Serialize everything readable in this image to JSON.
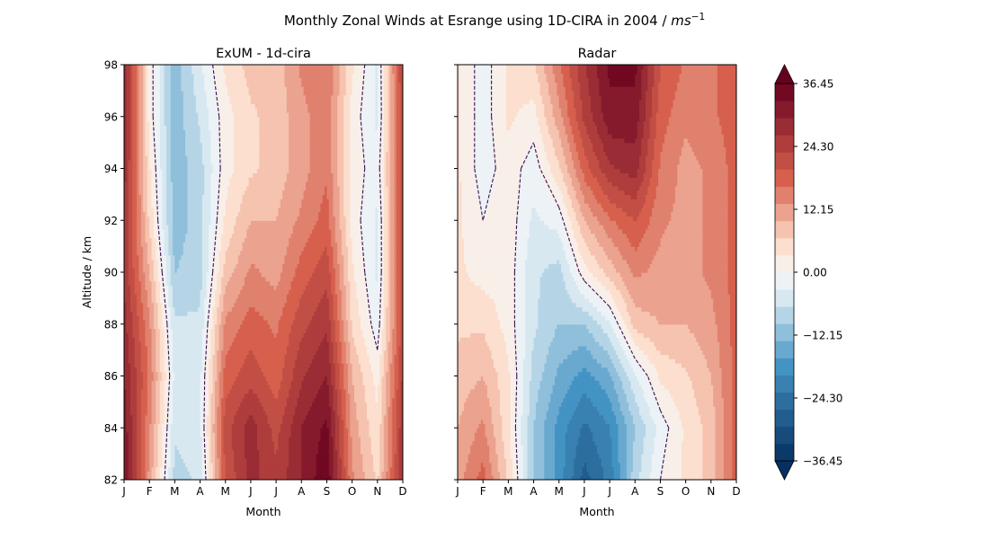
{
  "figure": {
    "suptitle_text": "Monthly Zonal Winds at Esrange using 1D-CIRA in 2004 / ",
    "suptitle_unit": "ms",
    "suptitle_exp": "−1"
  },
  "colors": {
    "neg_dark": "#053061",
    "neg_mid": "#4393c3",
    "neg_light": "#d1e5f0",
    "neutral": "#f7f7f7",
    "pos_light": "#fddbc7",
    "pos_mid": "#d6604d",
    "pos_dark": "#67001f",
    "contour": "#3b0f4f"
  },
  "chart_data": [
    {
      "type": "heatmap",
      "title": "ExUM - 1d-cira",
      "xlabel": "Month",
      "ylabel": "Altitude / km",
      "x_ticks": [
        "J",
        "F",
        "M",
        "A",
        "M",
        "J",
        "J",
        "A",
        "S",
        "O",
        "N",
        "D"
      ],
      "y_ticks": [
        "82",
        "84",
        "86",
        "88",
        "90",
        "92",
        "94",
        "96",
        "98"
      ],
      "ylim": [
        82,
        98
      ],
      "altitudes": [
        82,
        84,
        86,
        88,
        90,
        92,
        94,
        96,
        98
      ],
      "zonal_wind": [
        [
          34,
          12,
          -8,
          -6,
          20,
          28,
          24,
          30,
          36,
          14,
          6,
          26
        ],
        [
          32,
          14,
          -6,
          -4,
          22,
          28,
          22,
          30,
          34,
          12,
          4,
          26
        ],
        [
          30,
          16,
          -4,
          -4,
          18,
          22,
          18,
          26,
          30,
          10,
          2,
          24
        ],
        [
          28,
          14,
          -6,
          -6,
          14,
          18,
          16,
          22,
          26,
          6,
          -2,
          22
        ],
        [
          26,
          10,
          -10,
          -8,
          8,
          14,
          12,
          18,
          22,
          4,
          -4,
          22
        ],
        [
          26,
          6,
          -12,
          -8,
          4,
          10,
          10,
          14,
          18,
          2,
          -4,
          22
        ],
        [
          28,
          4,
          -12,
          -8,
          2,
          6,
          8,
          12,
          16,
          2,
          -2,
          22
        ],
        [
          30,
          2,
          -12,
          -6,
          2,
          6,
          8,
          12,
          16,
          2,
          -4,
          22
        ],
        [
          30,
          2,
          -12,
          -4,
          4,
          8,
          8,
          14,
          16,
          4,
          -4,
          24
        ]
      ]
    },
    {
      "type": "heatmap",
      "title": "Radar",
      "xlabel": "Month",
      "ylabel": "",
      "x_ticks": [
        "J",
        "F",
        "M",
        "A",
        "M",
        "J",
        "J",
        "A",
        "S",
        "O",
        "N",
        "D"
      ],
      "y_ticks": [
        "82",
        "84",
        "86",
        "88",
        "90",
        "92",
        "94",
        "96",
        "98"
      ],
      "ylim": [
        82,
        98
      ],
      "altitudes": [
        82,
        84,
        86,
        88,
        90,
        92,
        94,
        96,
        98
      ],
      "zonal_wind": [
        [
          12,
          18,
          6,
          -10,
          -18,
          -28,
          -22,
          -8,
          0,
          4,
          8,
          18
        ],
        [
          10,
          14,
          4,
          -10,
          -18,
          -24,
          -20,
          -10,
          -2,
          4,
          8,
          18
        ],
        [
          8,
          10,
          4,
          -8,
          -14,
          -18,
          -14,
          -4,
          4,
          6,
          10,
          18
        ],
        [
          6,
          6,
          2,
          -6,
          -10,
          -10,
          -4,
          8,
          10,
          10,
          12,
          18
        ],
        [
          4,
          2,
          2,
          -6,
          -8,
          2,
          8,
          14,
          12,
          12,
          14,
          18
        ],
        [
          4,
          0,
          2,
          -4,
          -2,
          10,
          16,
          20,
          14,
          12,
          14,
          18
        ],
        [
          4,
          -2,
          2,
          -2,
          6,
          18,
          26,
          28,
          16,
          12,
          14,
          18
        ],
        [
          4,
          -2,
          4,
          2,
          12,
          24,
          32,
          32,
          18,
          14,
          16,
          18
        ],
        [
          4,
          -2,
          4,
          6,
          16,
          26,
          34,
          34,
          20,
          16,
          16,
          18
        ]
      ]
    }
  ],
  "colorbar": {
    "min": -36.45,
    "max": 36.45,
    "levels": 22,
    "tick_values": [
      36.45,
      24.3,
      12.15,
      0.0,
      -12.15,
      -24.3,
      -36.45
    ],
    "tick_labels": [
      "36.45",
      "24.30",
      "12.15",
      "0.00",
      "−12.15",
      "−24.30",
      "−36.45"
    ]
  }
}
